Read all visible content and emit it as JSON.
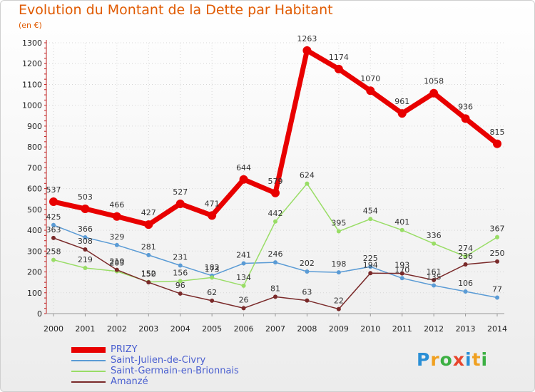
{
  "header": {
    "title": "Evolution du Montant de la Dette par Habitant",
    "unit": "(en €)"
  },
  "logo": {
    "text": "Proxiti",
    "letters": [
      {
        "ch": "P",
        "color": "#2a8fd6"
      },
      {
        "ch": "r",
        "color": "#f0a020"
      },
      {
        "ch": "o",
        "color": "#3cb043"
      },
      {
        "ch": "x",
        "color": "#e8452c"
      },
      {
        "ch": "i",
        "color": "#2a8fd6"
      },
      {
        "ch": "t",
        "color": "#f0a020"
      },
      {
        "ch": "i",
        "color": "#3cb043"
      }
    ]
  },
  "chart_data": {
    "type": "line",
    "x": [
      "2000",
      "2001",
      "2002",
      "2003",
      "2004",
      "2005",
      "2006",
      "2007",
      "2008",
      "2009",
      "2010",
      "2011",
      "2012",
      "2013",
      "2014"
    ],
    "ylim": [
      0,
      1300
    ],
    "yticks": [
      0,
      100,
      200,
      300,
      400,
      500,
      600,
      700,
      800,
      900,
      1000,
      1100,
      1200,
      1300
    ],
    "grid": true,
    "legend_position": "bottom-left",
    "series": [
      {
        "name": "PRIZY",
        "color": "#e80000",
        "primary": true,
        "values": [
          537,
          503,
          466,
          427,
          527,
          471,
          644,
          579,
          1263,
          1174,
          1070,
          961,
          1058,
          936,
          815
        ]
      },
      {
        "name": "Saint-Julien-de-Civry",
        "color": "#5a9bd5",
        "primary": false,
        "values": [
          425,
          366,
          329,
          281,
          231,
          182,
          241,
          246,
          202,
          198,
          225,
          170,
          135,
          106,
          77
        ]
      },
      {
        "name": "Saint-Germain-en-Brionnais",
        "color": "#99dd66",
        "primary": false,
        "values": [
          258,
          219,
          203,
          152,
          156,
          173,
          134,
          442,
          624,
          395,
          454,
          401,
          336,
          274,
          367
        ]
      },
      {
        "name": "Amanzé",
        "color": "#7a2a2a",
        "primary": false,
        "values": [
          363,
          308,
          210,
          150,
          96,
          62,
          26,
          81,
          63,
          22,
          194,
          193,
          161,
          236,
          250
        ]
      }
    ]
  }
}
